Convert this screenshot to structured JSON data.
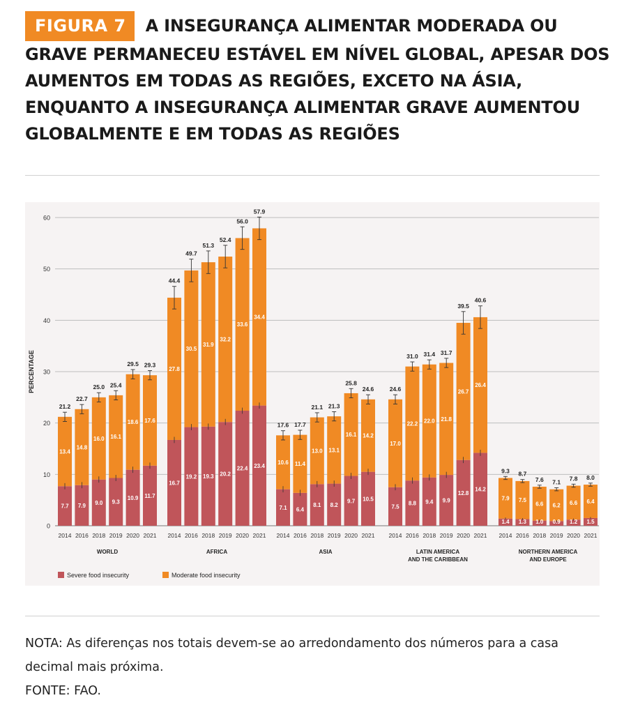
{
  "header": {
    "badge": "FIGURA 7",
    "title": "A INSEGURANÇA ALIMENTAR MODERADA OU GRAVE PERMANECEU ESTÁVEL EM NÍVEL GLOBAL, APESAR DOS AUMENTOS EM TODAS AS REGIÕES, EXCETO NA ÁSIA, ENQUANTO A INSEGURANÇA ALIMENTAR GRAVE AUMENTOU GLOBALMENTE E EM TODAS AS REGIÕES"
  },
  "colors": {
    "severe": "#c0555a",
    "moderate": "#f08a24",
    "badge": "#f08a24"
  },
  "chart_data": {
    "type": "bar",
    "stacked": true,
    "ylabel": "PERCENTAGE",
    "ylim": [
      0,
      60
    ],
    "yticks": [
      "0",
      "10",
      "20",
      "30",
      "40",
      "50",
      "60"
    ],
    "grid": true,
    "years": [
      "2014",
      "2016",
      "2018",
      "2019",
      "2020",
      "2021"
    ],
    "legend_position": "bottom-left",
    "legend": [
      "Severe food insecurity",
      "Moderate food insecurity"
    ],
    "groups": [
      {
        "name": [
          "WORLD"
        ],
        "severe": [
          "7.7",
          "7.9",
          "9.0",
          "9.3",
          "10.9",
          "11.7"
        ],
        "moderate": [
          "13.4",
          "14.8",
          "16.0",
          "16.1",
          "18.6",
          "17.6"
        ],
        "total": [
          "21.2",
          "22.7",
          "25.0",
          "25.4",
          "29.5",
          "29.3"
        ]
      },
      {
        "name": [
          "AFRICA"
        ],
        "severe": [
          "16.7",
          "19.2",
          "19.3",
          "20.2",
          "22.4",
          "23.4"
        ],
        "moderate": [
          "27.8",
          "30.5",
          "31.9",
          "32.2",
          "33.6",
          "34.4"
        ],
        "total": [
          "44.4",
          "49.7",
          "51.3",
          "52.4",
          "56.0",
          "57.9"
        ]
      },
      {
        "name": [
          "ASIA"
        ],
        "severe": [
          "7.1",
          "6.4",
          "8.1",
          "8.2",
          "9.7",
          "10.5"
        ],
        "moderate": [
          "10.6",
          "11.4",
          "13.0",
          "13.1",
          "16.1",
          "14.2"
        ],
        "total": [
          "17.6",
          "17.7",
          "21.1",
          "21.3",
          "25.8",
          "24.6"
        ]
      },
      {
        "name": [
          "LATIN AMERICA",
          "AND THE CARIBBEAN"
        ],
        "severe": [
          "7.5",
          "8.8",
          "9.4",
          "9.9",
          "12.8",
          "14.2"
        ],
        "moderate": [
          "17.0",
          "22.2",
          "22.0",
          "21.8",
          "26.7",
          "26.4"
        ],
        "total": [
          "24.6",
          "31.0",
          "31.4",
          "31.7",
          "39.5",
          "40.6"
        ]
      },
      {
        "name": [
          "NORTHERN AMERICA",
          "AND EUROPE"
        ],
        "severe": [
          "1.4",
          "1.3",
          "1.0",
          "0.9",
          "1.2",
          "1.5"
        ],
        "moderate": [
          "7.9",
          "7.5",
          "6.6",
          "6.2",
          "6.6",
          "6.4"
        ],
        "total": [
          "9.3",
          "8.7",
          "7.6",
          "7.1",
          "7.8",
          "8.0"
        ]
      }
    ]
  },
  "note": "NOTA: As diferenças nos totais devem-se ao arredondamento dos números para a casa decimal mais próxima.",
  "source": "FONTE: FAO."
}
